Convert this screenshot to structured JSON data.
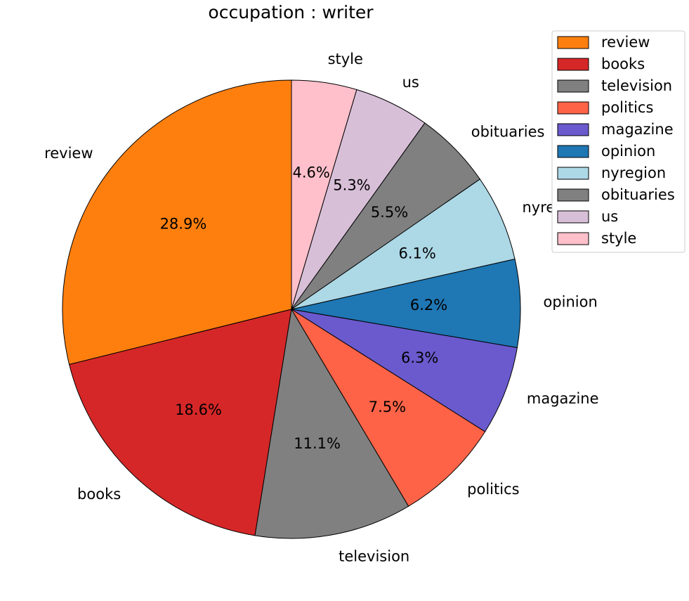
{
  "chart_data": {
    "type": "pie",
    "title": "occupation : writer",
    "slices": [
      {
        "label": "review",
        "value": 28.9,
        "pct_label": "28.9%",
        "color": "#ff7f0e"
      },
      {
        "label": "books",
        "value": 18.6,
        "pct_label": "18.6%",
        "color": "#d62728"
      },
      {
        "label": "television",
        "value": 11.1,
        "pct_label": "11.1%",
        "color": "#808080"
      },
      {
        "label": "politics",
        "value": 7.5,
        "pct_label": "7.5%",
        "color": "#ff6347"
      },
      {
        "label": "magazine",
        "value": 6.3,
        "pct_label": "6.3%",
        "color": "#6a5acd"
      },
      {
        "label": "opinion",
        "value": 6.2,
        "pct_label": "6.2%",
        "color": "#1f77b4"
      },
      {
        "label": "nyregion",
        "value": 6.1,
        "pct_label": "6.1%",
        "color": "#add8e6"
      },
      {
        "label": "obituaries",
        "value": 5.5,
        "pct_label": "5.5%",
        "color": "#808080"
      },
      {
        "label": "us",
        "value": 5.3,
        "pct_label": "5.3%",
        "color": "#d8bfd8"
      },
      {
        "label": "style",
        "value": 4.6,
        "pct_label": "4.6%",
        "color": "#ffc0cb"
      }
    ],
    "legend_position": "top-right",
    "start_angle": "top, counterclockwise"
  }
}
